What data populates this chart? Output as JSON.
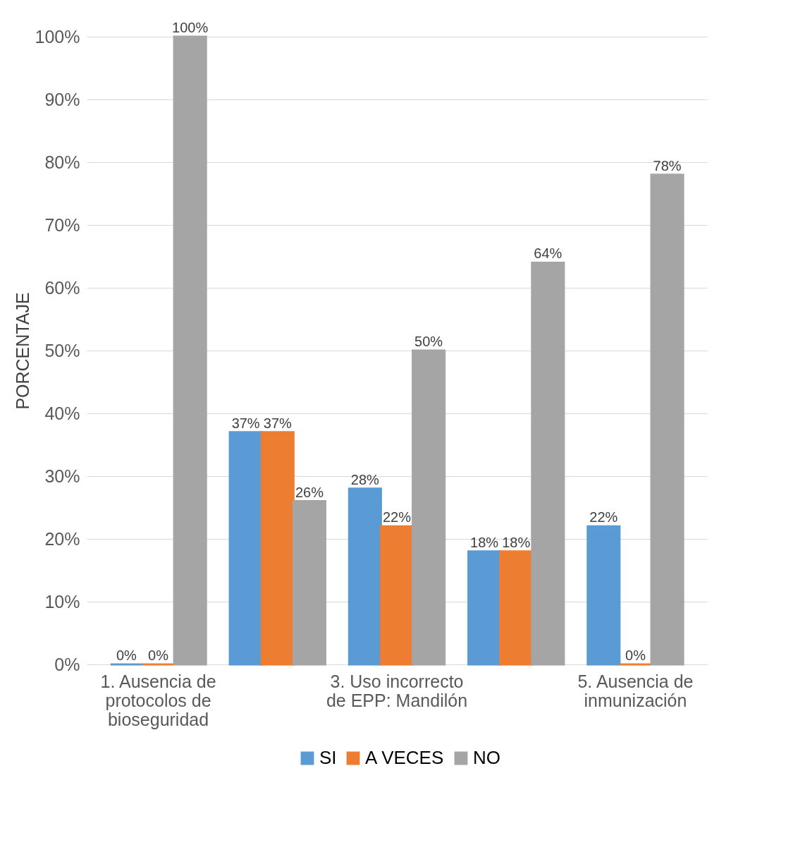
{
  "chart_data": {
    "type": "bar",
    "ylabel": "PORCENTAJE",
    "categories": [
      "1.  Ausencia de protocolos de bioseguridad",
      null,
      "3.    Uso incorrecto de EPP: Mandilón",
      null,
      "5. Ausencia de inmunización"
    ],
    "series": [
      {
        "name": "SI",
        "color": "#5b9bd5",
        "values": [
          0,
          37,
          28,
          18,
          22
        ],
        "value_labels": [
          "0%",
          "37%",
          "28%",
          "18%",
          "22%"
        ]
      },
      {
        "name": "A VECES",
        "color": "#ed7d31",
        "values": [
          0,
          37,
          22,
          18,
          0
        ],
        "value_labels": [
          "0%",
          "37%",
          "22%",
          "18%",
          "0%"
        ]
      },
      {
        "name": "NO",
        "color": "#a5a5a5",
        "values": [
          100,
          26,
          50,
          64,
          78
        ],
        "value_labels": [
          "100%",
          "26%",
          "50%",
          "64%",
          "78%"
        ]
      }
    ],
    "ylim": [
      0,
      100
    ],
    "yticks": [
      {
        "value": 0,
        "label": "0%"
      },
      {
        "value": 10,
        "label": "10%"
      },
      {
        "value": 20,
        "label": "20%"
      },
      {
        "value": 30,
        "label": "30%"
      },
      {
        "value": 40,
        "label": "40%"
      },
      {
        "value": 50,
        "label": "50%"
      },
      {
        "value": 60,
        "label": "60%"
      },
      {
        "value": 70,
        "label": "70%"
      },
      {
        "value": 80,
        "label": "80%"
      },
      {
        "value": 90,
        "label": "90%"
      },
      {
        "value": 100,
        "label": "100%"
      }
    ],
    "grid": "y",
    "legend": "bottom"
  }
}
